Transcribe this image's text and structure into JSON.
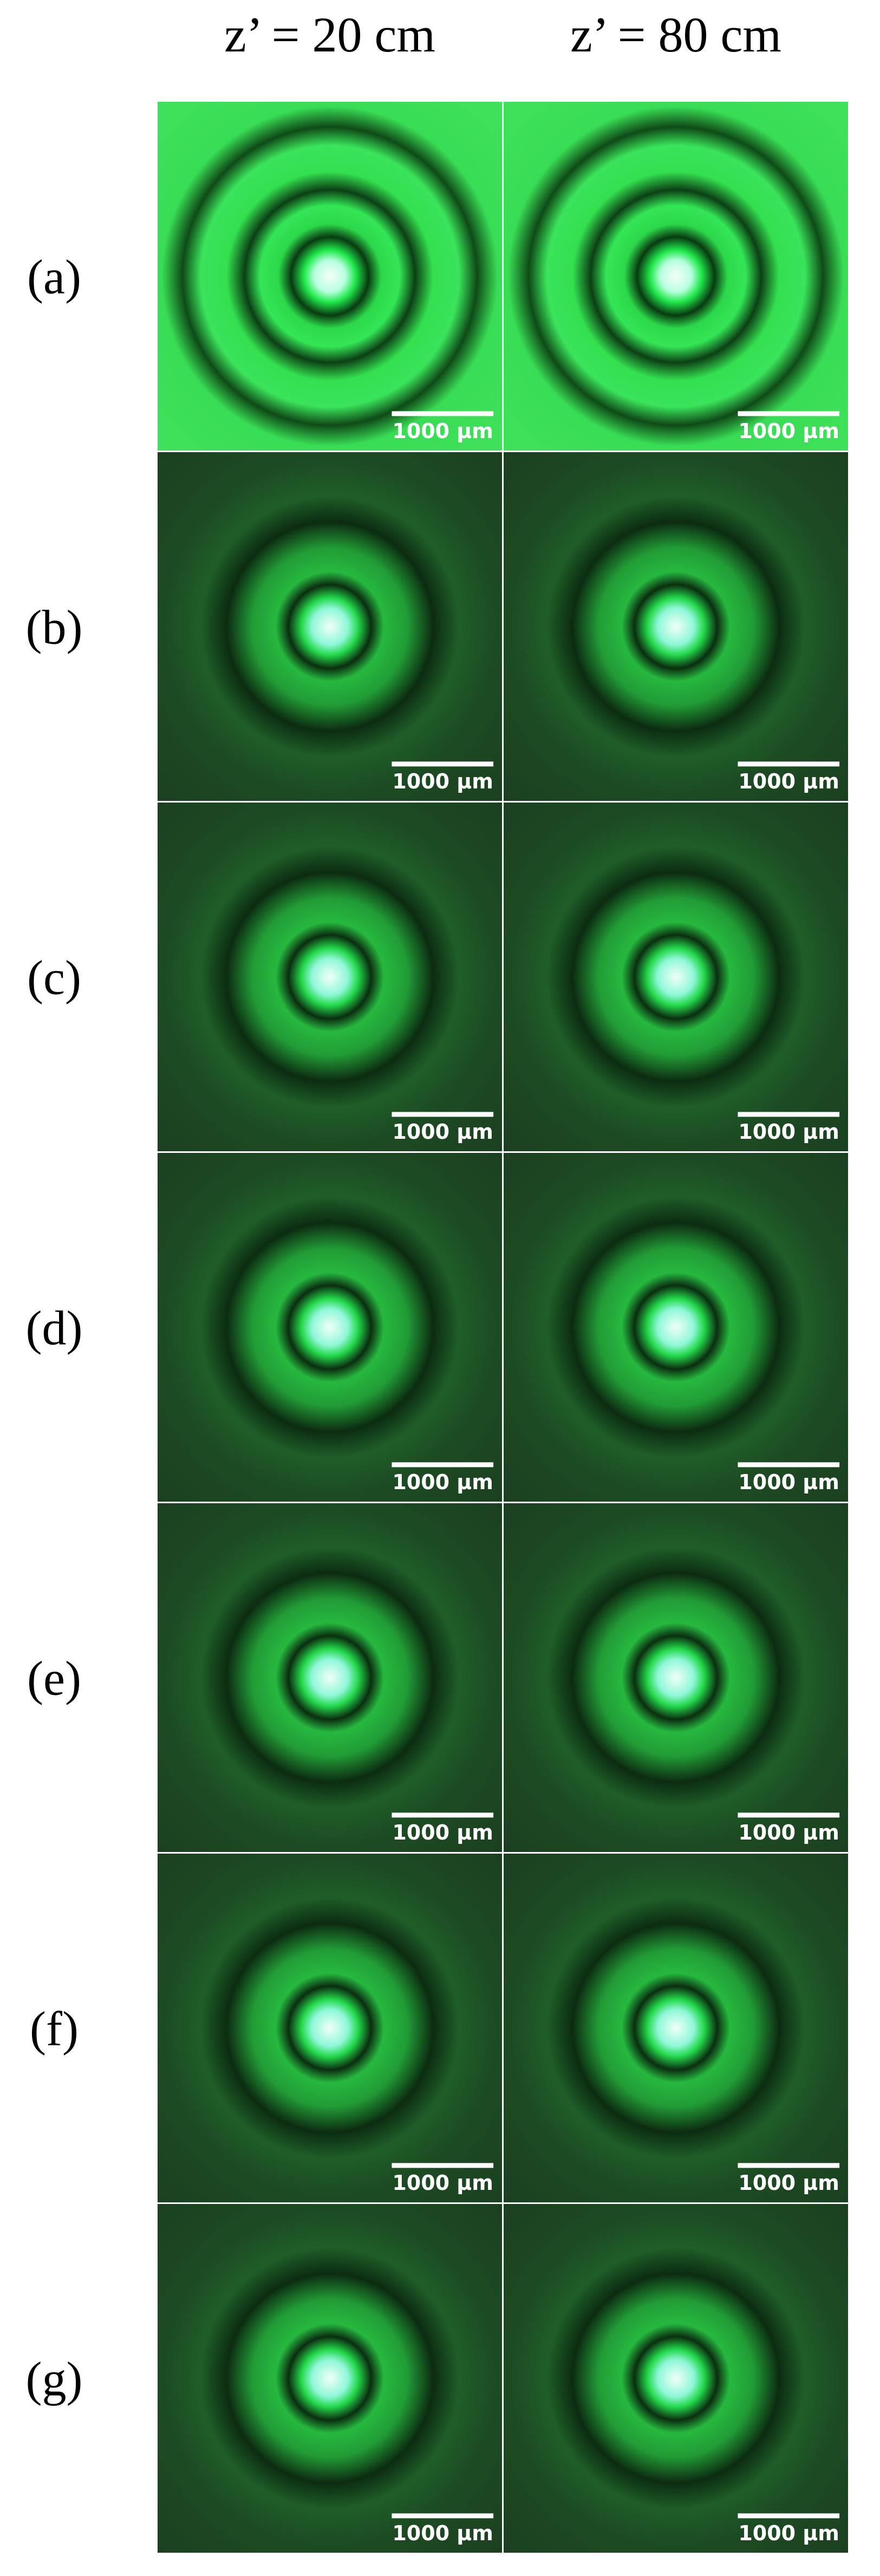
{
  "header": {
    "columns": [
      "z’ = 20 cm",
      "z’ = 80 cm"
    ]
  },
  "rows": [
    {
      "label": "(a)",
      "panels": [
        {
          "scale_bar": "1000 μm"
        },
        {
          "scale_bar": "1000 μm"
        }
      ]
    },
    {
      "label": "(b)",
      "panels": [
        {
          "scale_bar": "1000 μm"
        },
        {
          "scale_bar": "1000 μm"
        }
      ]
    },
    {
      "label": "(c)",
      "panels": [
        {
          "scale_bar": "1000 μm"
        },
        {
          "scale_bar": "1000 μm"
        }
      ]
    },
    {
      "label": "(d)",
      "panels": [
        {
          "scale_bar": "1000 μm"
        },
        {
          "scale_bar": "1000 μm"
        }
      ]
    },
    {
      "label": "(e)",
      "panels": [
        {
          "scale_bar": "1000 μm"
        },
        {
          "scale_bar": "1000 μm"
        }
      ]
    },
    {
      "label": "(f)",
      "panels": [
        {
          "scale_bar": "1000 μm"
        },
        {
          "scale_bar": "1000 μm"
        }
      ]
    },
    {
      "label": "(g)",
      "panels": [
        {
          "scale_bar": "1000 μm"
        },
        {
          "scale_bar": "1000 μm"
        }
      ]
    }
  ]
}
